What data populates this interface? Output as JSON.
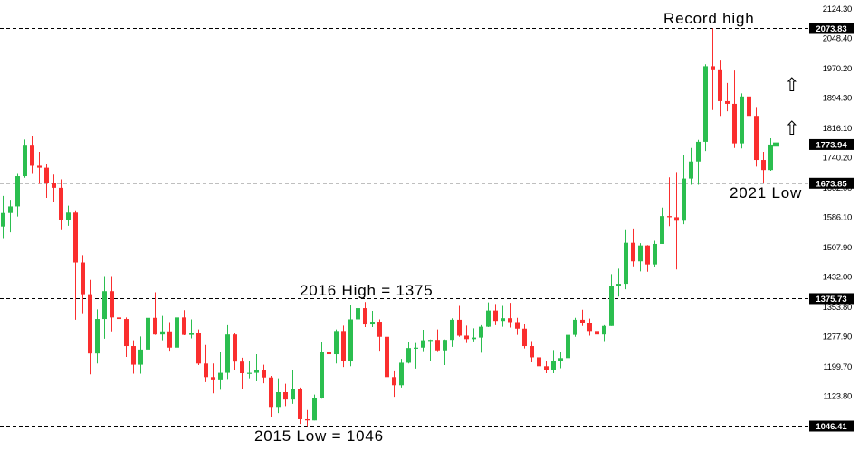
{
  "annotations": {
    "record_high": "Record high",
    "low_2021": "2021 Low",
    "high_2016": "2016 High = 1375",
    "low_2015": "2015 Low = 1046",
    "arrow_glyph": "⇧"
  },
  "chart_data": {
    "type": "candlestick",
    "x_axis": {
      "labels_visible": false
    },
    "y_axis": {
      "side": "right",
      "ticks": [
        "2124.30",
        "2048.40",
        "1970.20",
        "1894.30",
        "1816.10",
        "1740.20",
        "1662.00",
        "1586.10",
        "1507.90",
        "1432.00",
        "1353.80",
        "1277.90",
        "1199.70",
        "1123.80"
      ],
      "range": [
        1020,
        2150
      ]
    },
    "highlighted_levels": [
      {
        "label": "2073.83",
        "price": 2073.83,
        "dashed_line": true,
        "meaning": "Record high"
      },
      {
        "label": "1773.94",
        "price": 1773.94,
        "dashed_line": false,
        "meaning": "current price"
      },
      {
        "label": "1673.85",
        "price": 1673.85,
        "dashed_line": true,
        "meaning": "2021 Low"
      },
      {
        "label": "1375.73",
        "price": 1375.73,
        "dashed_line": true,
        "meaning": "2016 High"
      },
      {
        "label": "1046.41",
        "price": 1046.41,
        "dashed_line": true,
        "meaning": "2015 Low"
      }
    ],
    "current_price": 1773.94,
    "colors": {
      "up": "#2BBE4F",
      "down": "#FA2E2E",
      "text": "#000000",
      "label_bg": "#000000",
      "label_fg": "#FFFFFF",
      "background": "#FFFFFF"
    },
    "arrows_up_prices": [
      1928,
      1816
    ],
    "candles": [
      [
        1562,
        1641,
        1532,
        1597
      ],
      [
        1597,
        1631,
        1547,
        1614
      ],
      [
        1614,
        1698,
        1588,
        1692
      ],
      [
        1692,
        1787,
        1688,
        1771
      ],
      [
        1771,
        1796,
        1698,
        1719
      ],
      [
        1719,
        1755,
        1672,
        1714
      ],
      [
        1714,
        1723,
        1636,
        1675
      ],
      [
        1675,
        1696,
        1626,
        1662
      ],
      [
        1662,
        1684,
        1555,
        1580
      ],
      [
        1580,
        1616,
        1564,
        1598
      ],
      [
        1598,
        1604,
        1321,
        1469
      ],
      [
        1469,
        1488,
        1338,
        1387
      ],
      [
        1387,
        1424,
        1180,
        1234
      ],
      [
        1234,
        1348,
        1208,
        1323
      ],
      [
        1323,
        1434,
        1272,
        1395
      ],
      [
        1395,
        1434,
        1291,
        1327
      ],
      [
        1327,
        1362,
        1251,
        1323
      ],
      [
        1323,
        1327,
        1225,
        1253
      ],
      [
        1253,
        1268,
        1182,
        1205
      ],
      [
        1205,
        1278,
        1182,
        1244
      ],
      [
        1244,
        1345,
        1237,
        1326
      ],
      [
        1326,
        1392,
        1282,
        1283
      ],
      [
        1283,
        1331,
        1268,
        1291
      ],
      [
        1291,
        1315,
        1241,
        1249
      ],
      [
        1249,
        1334,
        1240,
        1327
      ],
      [
        1327,
        1346,
        1281,
        1282
      ],
      [
        1282,
        1322,
        1273,
        1287
      ],
      [
        1287,
        1296,
        1204,
        1208
      ],
      [
        1208,
        1256,
        1160,
        1173
      ],
      [
        1173,
        1208,
        1131,
        1167
      ],
      [
        1167,
        1239,
        1140,
        1184
      ],
      [
        1184,
        1307,
        1168,
        1283
      ],
      [
        1283,
        1286,
        1190,
        1213
      ],
      [
        1213,
        1223,
        1141,
        1183
      ],
      [
        1183,
        1215,
        1170,
        1184
      ],
      [
        1184,
        1232,
        1162,
        1190
      ],
      [
        1190,
        1205,
        1157,
        1172
      ],
      [
        1172,
        1176,
        1071,
        1096
      ],
      [
        1096,
        1170,
        1080,
        1134
      ],
      [
        1134,
        1156,
        1098,
        1115
      ],
      [
        1115,
        1191,
        1104,
        1142
      ],
      [
        1142,
        1146,
        1052,
        1064
      ],
      [
        1064,
        1088,
        1046.41,
        1061
      ],
      [
        1061,
        1128,
        1061,
        1118
      ],
      [
        1118,
        1263,
        1117,
        1238
      ],
      [
        1238,
        1285,
        1208,
        1232
      ],
      [
        1232,
        1296,
        1208,
        1292
      ],
      [
        1292,
        1306,
        1199,
        1215
      ],
      [
        1215,
        1359,
        1201,
        1322
      ],
      [
        1322,
        1375.73,
        1310,
        1351
      ],
      [
        1351,
        1367,
        1302,
        1309
      ],
      [
        1309,
        1344,
        1302,
        1316
      ],
      [
        1316,
        1322,
        1241,
        1277
      ],
      [
        1277,
        1338,
        1163,
        1173
      ],
      [
        1173,
        1188,
        1122,
        1152
      ],
      [
        1152,
        1220,
        1146,
        1210
      ],
      [
        1210,
        1264,
        1208,
        1248
      ],
      [
        1248,
        1261,
        1195,
        1249
      ],
      [
        1249,
        1295,
        1240,
        1268
      ],
      [
        1268,
        1270,
        1214,
        1269
      ],
      [
        1269,
        1296,
        1240,
        1242
      ],
      [
        1242,
        1270,
        1204,
        1269
      ],
      [
        1269,
        1325,
        1251,
        1321
      ],
      [
        1321,
        1357,
        1277,
        1280
      ],
      [
        1280,
        1306,
        1261,
        1271
      ],
      [
        1271,
        1299,
        1265,
        1275
      ],
      [
        1275,
        1307,
        1236,
        1303
      ],
      [
        1303,
        1366,
        1302,
        1345
      ],
      [
        1345,
        1362,
        1307,
        1318
      ],
      [
        1318,
        1357,
        1303,
        1325
      ],
      [
        1325,
        1365,
        1301,
        1315
      ],
      [
        1315,
        1326,
        1282,
        1298
      ],
      [
        1298,
        1309,
        1247,
        1253
      ],
      [
        1253,
        1266,
        1211,
        1224
      ],
      [
        1224,
        1235,
        1160,
        1201
      ],
      [
        1201,
        1214,
        1183,
        1192
      ],
      [
        1192,
        1243,
        1183,
        1215
      ],
      [
        1215,
        1237,
        1196,
        1222
      ],
      [
        1222,
        1285,
        1221,
        1282
      ],
      [
        1282,
        1326,
        1277,
        1321
      ],
      [
        1321,
        1347,
        1305,
        1313
      ],
      [
        1313,
        1324,
        1280,
        1292
      ],
      [
        1292,
        1310,
        1266,
        1283
      ],
      [
        1283,
        1307,
        1266,
        1305
      ],
      [
        1305,
        1439,
        1305,
        1409
      ],
      [
        1409,
        1453,
        1381,
        1414
      ],
      [
        1414,
        1555,
        1400,
        1520
      ],
      [
        1520,
        1557,
        1459,
        1472
      ],
      [
        1472,
        1519,
        1446,
        1513
      ],
      [
        1513,
        1514,
        1445,
        1464
      ],
      [
        1464,
        1525,
        1458,
        1517
      ],
      [
        1517,
        1611,
        1517,
        1589
      ],
      [
        1589,
        1689,
        1563,
        1586
      ],
      [
        1586,
        1703,
        1451,
        1577
      ],
      [
        1577,
        1747,
        1568,
        1686
      ],
      [
        1686,
        1765,
        1670,
        1730
      ],
      [
        1730,
        1786,
        1670,
        1781
      ],
      [
        1781,
        1981,
        1757,
        1976
      ],
      [
        1976,
        2073.83,
        1863,
        1968
      ],
      [
        1968,
        1993,
        1848,
        1886
      ],
      [
        1886,
        1933,
        1860,
        1879
      ],
      [
        1879,
        1965,
        1765,
        1777
      ],
      [
        1777,
        1906,
        1764,
        1898
      ],
      [
        1898,
        1959,
        1803,
        1848
      ],
      [
        1848,
        1871,
        1717,
        1734
      ],
      [
        1734,
        1755,
        1673.85,
        1708
      ],
      [
        1708,
        1790,
        1706,
        1773.94
      ]
    ]
  }
}
